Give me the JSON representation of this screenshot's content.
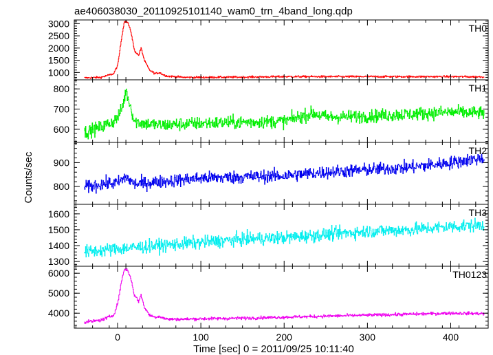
{
  "figure": {
    "title": "ae406038030_20110925101140_wam0_trn_4band_long.qdp",
    "xlabel": "Time [sec] 0 = 2011/09/25 10:11:40",
    "ylabel": "Counts/sec"
  },
  "chart_data": {
    "type": "line",
    "title": "ae406038030_20110925101140_wam0_trn_4band_long.qdp",
    "xlabel": "Time [sec] 0 = 2011/09/25 10:11:40",
    "ylabel": "Counts/sec",
    "xlim": [
      -52,
      445
    ],
    "x_ticks": [
      0,
      100,
      200,
      300,
      400
    ],
    "x_tick_labels": [
      "0",
      "100",
      "200",
      "300",
      "400"
    ],
    "grid": false,
    "panels": [
      {
        "name": "TH0",
        "color": "#ff0000",
        "ylim": [
          700,
          3150
        ],
        "y_ticks": [
          1000,
          1500,
          2000,
          2500,
          3000
        ],
        "y_tick_labels": [
          "1000",
          "1500",
          "2000",
          "2500",
          "3000"
        ],
        "x": [
          -40,
          -20,
          -5,
          0,
          5,
          8,
          12,
          16,
          20,
          25,
          28,
          32,
          38,
          45,
          50,
          55,
          60,
          80,
          100,
          150,
          200,
          250,
          300,
          350,
          400,
          440
        ],
        "y": [
          780,
          800,
          950,
          1300,
          2500,
          3100,
          3050,
          2650,
          1900,
          1700,
          2000,
          1500,
          1100,
          950,
          1000,
          900,
          850,
          800,
          800,
          810,
          830,
          830,
          830,
          830,
          830,
          820
        ]
      },
      {
        "name": "TH1",
        "color": "#00ee00",
        "ylim": [
          535,
          845
        ],
        "y_ticks": [
          600,
          700,
          800
        ],
        "y_tick_labels": [
          "600",
          "700",
          "800"
        ],
        "x": [
          -40,
          -20,
          -5,
          0,
          5,
          10,
          15,
          20,
          30,
          50,
          100,
          150,
          200,
          235,
          250,
          300,
          350,
          400,
          440
        ],
        "y": [
          585,
          610,
          640,
          660,
          700,
          790,
          720,
          640,
          630,
          620,
          630,
          635,
          640,
          680,
          660,
          665,
          675,
          685,
          680
        ]
      },
      {
        "name": "TH2",
        "color": "#0000ee",
        "ylim": [
          725,
          985
        ],
        "y_ticks": [
          800,
          900
        ],
        "y_tick_labels": [
          "800",
          "900"
        ],
        "x": [
          -40,
          -20,
          0,
          10,
          20,
          50,
          100,
          150,
          200,
          250,
          300,
          350,
          400,
          440
        ],
        "y": [
          795,
          810,
          815,
          840,
          810,
          820,
          835,
          840,
          845,
          860,
          870,
          880,
          900,
          920
        ]
      },
      {
        "name": "TH3",
        "color": "#00eeee",
        "ylim": [
          1270,
          1660
        ],
        "y_ticks": [
          1300,
          1400,
          1500,
          1600
        ],
        "y_tick_labels": [
          "1300",
          "1400",
          "1500",
          "1600"
        ],
        "x": [
          -40,
          -20,
          0,
          50,
          100,
          150,
          200,
          250,
          300,
          350,
          400,
          440
        ],
        "y": [
          1360,
          1370,
          1380,
          1400,
          1420,
          1440,
          1450,
          1470,
          1490,
          1500,
          1520,
          1530
        ]
      },
      {
        "name": "TH0123",
        "color": "#ee00ee",
        "ylim": [
          3250,
          6350
        ],
        "y_ticks": [
          4000,
          5000,
          6000
        ],
        "y_tick_labels": [
          "4000",
          "5000",
          "6000"
        ],
        "x": [
          -40,
          -20,
          -5,
          0,
          5,
          8,
          12,
          16,
          20,
          25,
          28,
          32,
          38,
          45,
          50,
          55,
          60,
          80,
          100,
          150,
          200,
          250,
          300,
          350,
          400,
          440
        ],
        "y": [
          3550,
          3650,
          3900,
          4500,
          5700,
          6200,
          6150,
          5700,
          4900,
          4600,
          4900,
          4300,
          3900,
          3800,
          3850,
          3750,
          3700,
          3700,
          3720,
          3750,
          3800,
          3850,
          3900,
          3950,
          4000,
          3980
        ]
      }
    ]
  }
}
